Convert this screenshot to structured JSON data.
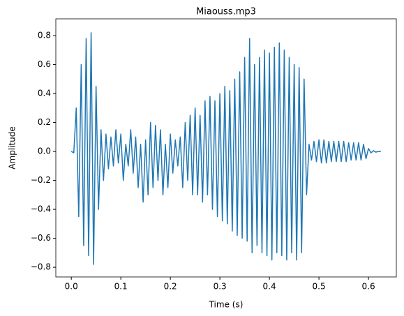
{
  "chart_data": {
    "type": "line",
    "title": "Miaouss.mp3",
    "xlabel": "Time (s)",
    "ylabel": "Amplitude",
    "x": [
      0,
      0.005,
      0.01,
      0.015,
      0.02,
      0.025,
      0.03,
      0.035,
      0.04,
      0.045,
      0.05,
      0.055,
      0.06,
      0.065,
      0.07,
      0.075,
      0.08,
      0.085,
      0.09,
      0.095,
      0.1,
      0.105,
      0.11,
      0.115,
      0.12,
      0.125,
      0.13,
      0.135,
      0.14,
      0.145,
      0.15,
      0.155,
      0.16,
      0.165,
      0.17,
      0.175,
      0.18,
      0.185,
      0.19,
      0.195,
      0.2,
      0.205,
      0.21,
      0.215,
      0.22,
      0.225,
      0.23,
      0.235,
      0.24,
      0.245,
      0.25,
      0.255,
      0.26,
      0.265,
      0.27,
      0.275,
      0.28,
      0.285,
      0.29,
      0.295,
      0.3,
      0.305,
      0.31,
      0.315,
      0.32,
      0.325,
      0.33,
      0.335,
      0.34,
      0.345,
      0.35,
      0.355,
      0.36,
      0.365,
      0.37,
      0.375,
      0.38,
      0.385,
      0.39,
      0.395,
      0.4,
      0.405,
      0.41,
      0.415,
      0.42,
      0.425,
      0.43,
      0.435,
      0.44,
      0.445,
      0.45,
      0.455,
      0.46,
      0.465,
      0.47,
      0.475,
      0.48,
      0.485,
      0.49,
      0.495,
      0.5,
      0.505,
      0.51,
      0.515,
      0.52,
      0.525,
      0.53,
      0.535,
      0.54,
      0.545,
      0.55,
      0.555,
      0.56,
      0.565,
      0.57,
      0.575,
      0.58,
      0.585,
      0.59,
      0.595,
      0.6,
      0.605,
      0.61,
      0.615,
      0.62,
      0.625
    ],
    "series": [
      {
        "color": "#1f77b4",
        "values": [
          0,
          -0.01,
          0.3,
          -0.45,
          0.6,
          -0.65,
          0.78,
          -0.72,
          0.82,
          -0.78,
          0.45,
          -0.4,
          0.15,
          -0.2,
          0.12,
          -0.12,
          0.1,
          -0.1,
          0.15,
          -0.08,
          0.12,
          -0.2,
          0.05,
          -0.1,
          0.15,
          -0.15,
          0.1,
          -0.25,
          0.05,
          -0.35,
          0.08,
          -0.3,
          0.2,
          -0.25,
          0.18,
          -0.2,
          0.15,
          -0.3,
          0.05,
          -0.25,
          0.12,
          -0.15,
          0.08,
          -0.1,
          0.1,
          -0.25,
          0.2,
          -0.2,
          0.25,
          -0.3,
          0.3,
          -0.3,
          0.25,
          -0.35,
          0.35,
          -0.3,
          0.38,
          -0.4,
          0.35,
          -0.45,
          0.4,
          -0.48,
          0.45,
          -0.5,
          0.42,
          -0.55,
          0.5,
          -0.58,
          0.55,
          -0.6,
          0.65,
          -0.62,
          0.78,
          -0.7,
          0.6,
          -0.65,
          0.65,
          -0.7,
          0.7,
          -0.72,
          0.68,
          -0.75,
          0.72,
          -0.7,
          0.75,
          -0.72,
          0.7,
          -0.75,
          0.65,
          -0.7,
          0.6,
          -0.75,
          0.58,
          -0.7,
          0.5,
          -0.3,
          0.05,
          -0.06,
          0.07,
          -0.07,
          0.08,
          -0.08,
          0.08,
          -0.08,
          0.07,
          -0.07,
          0.07,
          -0.07,
          0.07,
          -0.07,
          0.07,
          -0.07,
          0.06,
          -0.06,
          0.06,
          -0.06,
          0.06,
          -0.06,
          0.05,
          -0.05,
          0.02,
          -0.01,
          0.005,
          -0.005,
          0,
          0
        ]
      }
    ],
    "xlim": [
      -0.03125,
      0.65625
    ],
    "ylim": [
      -0.867,
      0.916
    ],
    "xticks": [
      {
        "value": 0,
        "label": "0.0"
      },
      0.1,
      0.2,
      0.3,
      0.4,
      0.5,
      0.6
    ],
    "yticks": [
      {
        "value": -0.8,
        "label": "−0.8"
      },
      {
        "value": -0.6,
        "label": "−0.6"
      },
      {
        "value": -0.4,
        "label": "−0.4"
      },
      {
        "value": -0.2,
        "label": "−0.2"
      },
      {
        "value": 0,
        "label": "0.0"
      },
      0.2,
      0.4,
      0.6,
      0.8
    ]
  }
}
